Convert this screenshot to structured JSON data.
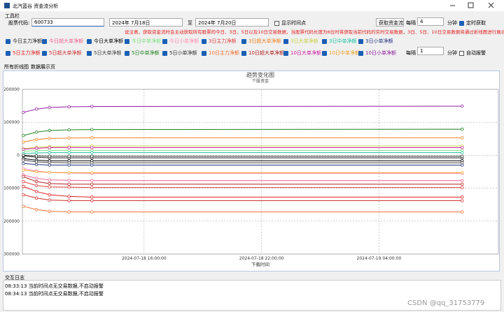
{
  "window": {
    "title": "北汽蓝谷 资金流分析"
  },
  "toolbar": {
    "title": "工具栏",
    "code_label": "股票代码:",
    "code": "600733",
    "date_from": "2024年  7月18日",
    "to_label": "至",
    "date_to": "2024年  7月20日",
    "show_points": "显示时间点",
    "fetch_button": "获取资金流",
    "every_label": "每隔",
    "every_value": "4",
    "minute_label": "分钟",
    "timer_label": "定时获取",
    "notice": "说注意，获取资金流时会主动获取所有股票的今日、3日、5日以及10日交易数据，当股票代码长度为6位时将获取当前代码的实时交易数据，3日、5日、10日交易数据将通过折线图进行展示",
    "alarm_every_label": "每隔",
    "alarm_every_value": "1",
    "alarm_minute_label": "分钟",
    "alarm_label": "自动报警"
  },
  "tabs": [
    "所有折线图",
    "数据展示页"
  ],
  "chart_data": {
    "type": "line",
    "title": "趋势变化图",
    "subtitle": "个股资金",
    "x_label": "下载时间",
    "x": [
      "2024-07-18 09:50:00",
      "2024-07-18 10:30:00",
      "2024-07-18 11:10:00",
      "2024-07-18 12:10:00",
      "2024-07-18 13:20:00",
      "2024-07-19 08:15:00"
    ],
    "xlim": [
      "2024-07-18 09:47:00",
      "2024-07-19 10:06:00"
    ],
    "xticks": [
      "2024-07-18 16:00:00",
      "2024-07-18 22:00:00",
      "2024-07-19 04:00:00"
    ],
    "ylim": [
      -300000,
      200000
    ],
    "yticks": [
      {
        "value": -300000,
        "label": "300000"
      },
      {
        "value": -200000,
        "label": "200000"
      },
      {
        "value": -100000,
        "label": "100000"
      },
      0,
      100000,
      200000
    ],
    "grid": true,
    "series": [
      {
        "name": "今日主力净额",
        "color": "#222222",
        "values": [
          -2000,
          -6000,
          -8000,
          -8000,
          -8000,
          -8000
        ]
      },
      {
        "name": "今日超大单净额",
        "color": "#f0608a",
        "values": [
          -60000,
          -70000,
          -75000,
          -76000,
          -77000,
          -77000
        ]
      },
      {
        "name": "今日大单净额",
        "color": "#000000",
        "values": [
          -10000,
          -15000,
          -17000,
          -17000,
          -17000,
          -17000
        ]
      },
      {
        "name": "今日中单净额",
        "color": "#7ee07e",
        "values": [
          12000,
          14000,
          15000,
          15000,
          15000,
          15000
        ]
      },
      {
        "name": "今日小单净额",
        "color": "#ff8fb0",
        "values": [
          -40000,
          -48000,
          -52000,
          -54000,
          -55000,
          -55000
        ]
      },
      {
        "name": "3日主力净额",
        "color": "#e04040",
        "values": [
          -80000,
          -92000,
          -96000,
          -97000,
          -98000,
          -98000
        ]
      },
      {
        "name": "3日超大单净额",
        "color": "#f08020",
        "values": [
          40000,
          48000,
          51000,
          52000,
          53000,
          53000
        ]
      },
      {
        "name": "3日大单净额",
        "color": "#c8d040",
        "values": [
          20000,
          24000,
          26000,
          27000,
          28000,
          28000
        ]
      },
      {
        "name": "3日中单净额",
        "color": "#20c0a0",
        "values": [
          5000,
          7000,
          8000,
          8000,
          8000,
          8000
        ]
      },
      {
        "name": "3日小单净额",
        "color": "#203080",
        "values": [
          -25000,
          -28000,
          -30000,
          -30000,
          -30000,
          -30000
        ]
      },
      {
        "name": "5日主力净额",
        "color": "#e02020",
        "values": [
          -95000,
          -110000,
          -120000,
          -125000,
          -127000,
          -127000
        ]
      },
      {
        "name": "5日超大单净额",
        "color": "#d03030",
        "values": [
          -120000,
          -130000,
          -136000,
          -138000,
          -138000,
          -138000
        ]
      },
      {
        "name": "5日大单净额",
        "color": "#404040",
        "values": [
          -15000,
          -20000,
          -22000,
          -23000,
          -23000,
          -23000
        ]
      },
      {
        "name": "5日中单净额",
        "color": "#208020",
        "values": [
          60000,
          70000,
          75000,
          77000,
          78000,
          79000
        ]
      },
      {
        "name": "5日小单净额",
        "color": "#303030",
        "values": [
          0,
          -2000,
          -3000,
          -3000,
          -3000,
          -3000
        ]
      },
      {
        "name": "10日主力净额",
        "color": "#f07030",
        "values": [
          -155000,
          -165000,
          -170000,
          -172000,
          -172000,
          -172000
        ]
      },
      {
        "name": "10日超大单净额",
        "color": "#b02020",
        "values": [
          -65000,
          -80000,
          -86000,
          -88000,
          -88000,
          -88000
        ]
      },
      {
        "name": "10日大单净额",
        "color": "#d020a0",
        "values": [
          18000,
          21000,
          23000,
          23000,
          23000,
          23000
        ]
      },
      {
        "name": "10日中单净额",
        "color": "#f0a030",
        "values": [
          -45000,
          -50000,
          -52000,
          -53000,
          -53000,
          -53000
        ]
      },
      {
        "name": "10日小单净额",
        "color": "#9020a0",
        "values": [
          130000,
          140000,
          145000,
          147000,
          148000,
          149000
        ]
      }
    ]
  },
  "log": {
    "title": "交互日志",
    "lines": [
      "08:33:13 当前时间点无交易数据,不启动报警",
      "08:34:13 当前时间点无交易数据,不启动报警"
    ]
  },
  "watermark": "CSDN @qq_31753779"
}
